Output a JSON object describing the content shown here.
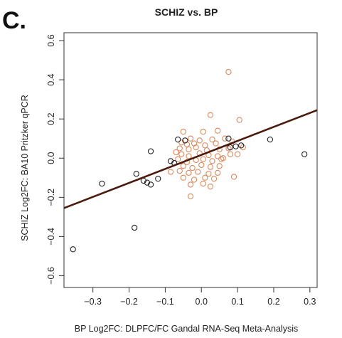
{
  "panel_label": "C.",
  "chart_data": {
    "type": "scatter",
    "title": "SCHIZ vs. BP",
    "xlabel": "BP Log2FC: DLPFC/FC Gandal RNA-Seq Meta-Analysis",
    "ylabel": "SCHIZ Log2FC: BA10 Pritzker qPCR",
    "xlim": [
      -0.38,
      0.32
    ],
    "ylim": [
      -0.66,
      0.64
    ],
    "x_ticks": [
      -0.3,
      -0.2,
      -0.1,
      0.0,
      0.1,
      0.2,
      0.3
    ],
    "y_ticks": [
      -0.6,
      -0.4,
      -0.2,
      0.0,
      0.2,
      0.4,
      0.6
    ],
    "x_tick_labels": [
      "−0.3",
      "−0.2",
      "−0.1",
      "0.0",
      "0.1",
      "0.2",
      "0.3"
    ],
    "y_tick_labels": [
      "−0.6",
      "−0.4",
      "−0.2",
      "0.0",
      "0.2",
      "0.4",
      "0.6"
    ],
    "grid": false,
    "colors": {
      "black_points": "#222222",
      "orange_points": "#d98a5e",
      "fit_line": "#4a1a0c"
    },
    "fit_line": {
      "x": [
        -0.38,
        0.32
      ],
      "y": [
        -0.255,
        0.245
      ]
    },
    "series": [
      {
        "color": "#222222",
        "points": [
          [
            -0.355,
            -0.465
          ],
          [
            -0.275,
            -0.13
          ],
          [
            -0.185,
            -0.355
          ],
          [
            -0.18,
            -0.08
          ],
          [
            -0.16,
            -0.115
          ],
          [
            -0.15,
            -0.125
          ],
          [
            -0.14,
            -0.135
          ],
          [
            -0.14,
            0.035
          ],
          [
            -0.12,
            -0.105
          ],
          [
            -0.085,
            -0.015
          ],
          [
            -0.075,
            -0.025
          ],
          [
            -0.065,
            0.095
          ],
          [
            -0.045,
            0.09
          ],
          [
            0.075,
            0.1
          ],
          [
            0.08,
            0.055
          ],
          [
            0.095,
            0.06
          ],
          [
            0.11,
            0.065
          ],
          [
            0.19,
            0.095
          ],
          [
            0.285,
            0.02
          ]
        ]
      },
      {
        "color": "#d98a5e",
        "points": [
          [
            0.075,
            0.44
          ],
          [
            0.025,
            0.22
          ],
          [
            0.105,
            0.195
          ],
          [
            -0.05,
            0.135
          ],
          [
            0.005,
            0.135
          ],
          [
            0.045,
            0.14
          ],
          [
            -0.03,
            0.1
          ],
          [
            -0.005,
            0.09
          ],
          [
            0.03,
            0.095
          ],
          [
            0.065,
            0.1
          ],
          [
            -0.055,
            0.08
          ],
          [
            -0.04,
            0.07
          ],
          [
            -0.02,
            0.075
          ],
          [
            0.01,
            0.065
          ],
          [
            0.04,
            0.075
          ],
          [
            0.085,
            0.085
          ],
          [
            -0.06,
            0.05
          ],
          [
            -0.035,
            0.045
          ],
          [
            -0.015,
            0.055
          ],
          [
            0.015,
            0.04
          ],
          [
            0.05,
            0.045
          ],
          [
            0.075,
            0.05
          ],
          [
            0.115,
            0.055
          ],
          [
            -0.055,
            0.02
          ],
          [
            -0.035,
            0.01
          ],
          [
            -0.005,
            0.025
          ],
          [
            0.02,
            0.015
          ],
          [
            0.045,
            0.01
          ],
          [
            0.08,
            0.02
          ],
          [
            -0.065,
            -0.005
          ],
          [
            -0.04,
            -0.02
          ],
          [
            -0.015,
            -0.01
          ],
          [
            0.005,
            -0.005
          ],
          [
            0.03,
            -0.015
          ],
          [
            0.055,
            -0.005
          ],
          [
            -0.05,
            -0.04
          ],
          [
            -0.025,
            -0.05
          ],
          [
            0.0,
            -0.035
          ],
          [
            0.025,
            -0.045
          ],
          [
            0.05,
            -0.04
          ],
          [
            -0.085,
            -0.07
          ],
          [
            -0.06,
            -0.065
          ],
          [
            -0.035,
            -0.075
          ],
          [
            -0.01,
            -0.07
          ],
          [
            0.02,
            -0.08
          ],
          [
            0.045,
            -0.075
          ],
          [
            -0.05,
            -0.1
          ],
          [
            -0.02,
            -0.11
          ],
          [
            0.01,
            -0.1
          ],
          [
            0.035,
            -0.105
          ],
          [
            -0.03,
            -0.135
          ],
          [
            0.005,
            -0.13
          ],
          [
            0.025,
            -0.145
          ],
          [
            0.09,
            -0.095
          ],
          [
            -0.03,
            -0.195
          ],
          [
            0.06,
            0.0
          ],
          [
            -0.07,
            0.03
          ],
          [
            0.1,
            0.02
          ]
        ]
      }
    ]
  }
}
